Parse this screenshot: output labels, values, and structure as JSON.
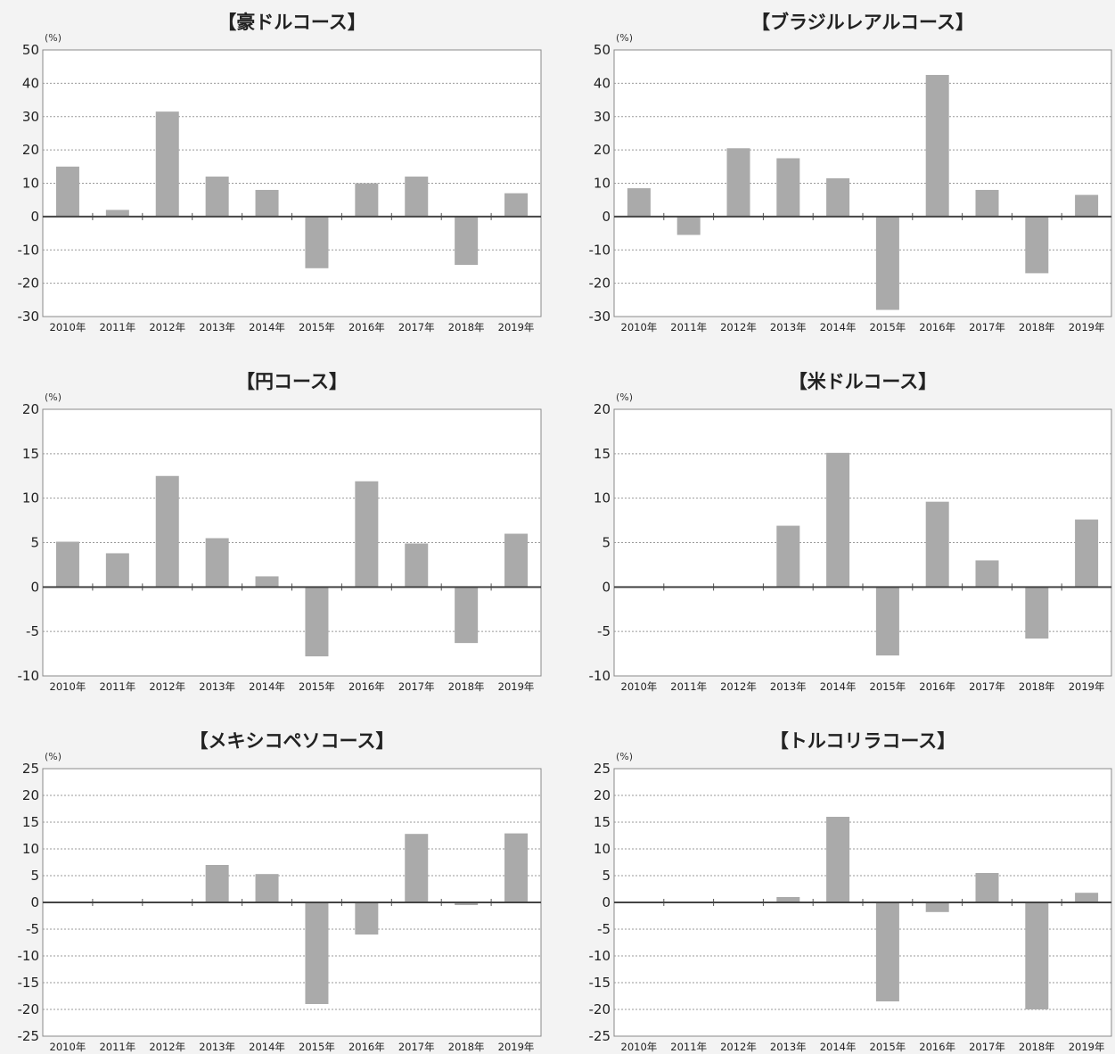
{
  "chart_data": [
    {
      "type": "bar",
      "title": "【豪ドルコース】",
      "unit": "(%)",
      "categories": [
        "2010年",
        "2011年",
        "2012年",
        "2013年",
        "2014年",
        "2015年",
        "2016年",
        "2017年",
        "2018年",
        "2019年"
      ],
      "values": [
        15,
        2,
        31.5,
        12,
        8,
        -15.5,
        10,
        12,
        -14.5,
        7
      ],
      "ylim": [
        -30,
        50
      ],
      "yticks": [
        50,
        40,
        30,
        20,
        10,
        0,
        -10,
        -20,
        -30
      ],
      "grid": true,
      "bar_color": "#aaaaaa"
    },
    {
      "type": "bar",
      "title": "【ブラジルレアルコース】",
      "unit": "(%)",
      "categories": [
        "2010年",
        "2011年",
        "2012年",
        "2013年",
        "2014年",
        "2015年",
        "2016年",
        "2017年",
        "2018年",
        "2019年"
      ],
      "values": [
        8.5,
        -5.5,
        20.5,
        17.5,
        11.5,
        -28,
        42.5,
        8,
        -17,
        6.5
      ],
      "ylim": [
        -30,
        50
      ],
      "yticks": [
        50,
        40,
        30,
        20,
        10,
        0,
        -10,
        -20,
        -30
      ],
      "grid": true,
      "bar_color": "#aaaaaa"
    },
    {
      "type": "bar",
      "title": "【円コース】",
      "unit": "(%)",
      "categories": [
        "2010年",
        "2011年",
        "2012年",
        "2013年",
        "2014年",
        "2015年",
        "2016年",
        "2017年",
        "2018年",
        "2019年"
      ],
      "values": [
        5.1,
        3.8,
        12.5,
        5.5,
        1.2,
        -7.8,
        11.9,
        4.9,
        -6.3,
        6.0
      ],
      "ylim": [
        -10,
        20
      ],
      "yticks": [
        20,
        15,
        10,
        5,
        0,
        -5,
        -10
      ],
      "grid": true,
      "bar_color": "#aaaaaa"
    },
    {
      "type": "bar",
      "title": "【米ドルコース】",
      "unit": "(%)",
      "categories": [
        "2010年",
        "2011年",
        "2012年",
        "2013年",
        "2014年",
        "2015年",
        "2016年",
        "2017年",
        "2018年",
        "2019年"
      ],
      "values": [
        null,
        null,
        null,
        6.9,
        15.1,
        -7.7,
        9.6,
        3.0,
        -5.8,
        7.6
      ],
      "ylim": [
        -10,
        20
      ],
      "yticks": [
        20,
        15,
        10,
        5,
        0,
        -5,
        -10
      ],
      "grid": true,
      "bar_color": "#aaaaaa"
    },
    {
      "type": "bar",
      "title": "【メキシコペソコース】",
      "unit": "(%)",
      "categories": [
        "2010年",
        "2011年",
        "2012年",
        "2013年",
        "2014年",
        "2015年",
        "2016年",
        "2017年",
        "2018年",
        "2019年"
      ],
      "values": [
        null,
        null,
        null,
        7,
        5.3,
        -19,
        -6,
        12.8,
        -0.5,
        12.9
      ],
      "ylim": [
        -25,
        25
      ],
      "yticks": [
        25,
        20,
        15,
        10,
        5,
        0,
        -5,
        -10,
        -15,
        -20,
        -25
      ],
      "grid": true,
      "bar_color": "#aaaaaa"
    },
    {
      "type": "bar",
      "title": "【トルコリラコース】",
      "unit": "(%)",
      "categories": [
        "2010年",
        "2011年",
        "2012年",
        "2013年",
        "2014年",
        "2015年",
        "2016年",
        "2017年",
        "2018年",
        "2019年"
      ],
      "values": [
        null,
        null,
        null,
        1,
        16,
        -18.5,
        -1.8,
        5.5,
        -20,
        1.8
      ],
      "ylim": [
        -25,
        25
      ],
      "yticks": [
        25,
        20,
        15,
        10,
        5,
        0,
        -5,
        -10,
        -15,
        -20,
        -25
      ],
      "grid": true,
      "bar_color": "#aaaaaa"
    }
  ]
}
